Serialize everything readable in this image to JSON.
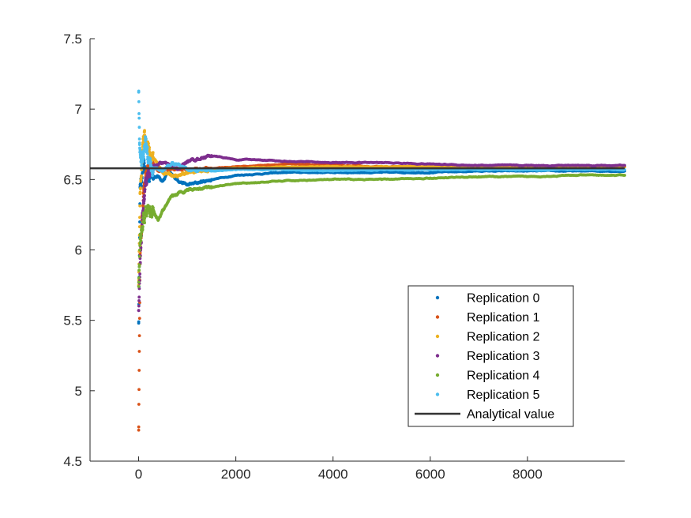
{
  "chart_data": {
    "type": "scatter",
    "title": "",
    "xlabel": "",
    "ylabel": "",
    "xlim": [
      -1000,
      10000
    ],
    "ylim": [
      4.5,
      7.5
    ],
    "xticks": [
      0,
      2000,
      4000,
      6000,
      8000
    ],
    "xtick_labels": [
      "0",
      "2000",
      "4000",
      "6000",
      "8000"
    ],
    "yticks": [
      4.5,
      5,
      5.5,
      6,
      6.5,
      7,
      7.5
    ],
    "ytick_labels": [
      "4.5",
      "5",
      "5.5",
      "6",
      "6.5",
      "7",
      "7.5"
    ],
    "grid": false,
    "legend_position": "lower-right",
    "series": [
      {
        "name": "Replication 0",
        "color": "#0072BD",
        "x": [
          1,
          30,
          100,
          200,
          400,
          500,
          600,
          800,
          1000,
          1500,
          2000,
          3000,
          4000,
          5000,
          6000,
          7000,
          8000,
          9000,
          10000
        ],
        "y": [
          5.48,
          6.45,
          6.58,
          6.55,
          6.52,
          6.49,
          6.55,
          6.5,
          6.46,
          6.5,
          6.53,
          6.55,
          6.55,
          6.55,
          6.55,
          6.56,
          6.56,
          6.56,
          6.56
        ]
      },
      {
        "name": "Replication 1",
        "color": "#D95319",
        "x": [
          1,
          30,
          100,
          150,
          250,
          400,
          600,
          800,
          1000,
          1500,
          2000,
          3000,
          4000,
          5000,
          6000,
          7000,
          8000,
          9000,
          10000
        ],
        "y": [
          4.72,
          5.97,
          6.4,
          6.55,
          6.62,
          6.56,
          6.57,
          6.58,
          6.57,
          6.58,
          6.59,
          6.61,
          6.6,
          6.59,
          6.59,
          6.59,
          6.59,
          6.59,
          6.59
        ]
      },
      {
        "name": "Replication 2",
        "color": "#EDB120",
        "x": [
          1,
          30,
          80,
          120,
          200,
          300,
          500,
          800,
          1000,
          1500,
          2000,
          3000,
          4000,
          5000,
          6000,
          7000,
          8000,
          9000,
          10000
        ],
        "y": [
          5.75,
          6.4,
          6.7,
          6.84,
          6.7,
          6.65,
          6.55,
          6.52,
          6.55,
          6.57,
          6.58,
          6.59,
          6.59,
          6.59,
          6.59,
          6.59,
          6.59,
          6.59,
          6.59
        ]
      },
      {
        "name": "Replication 3",
        "color": "#7E2F8E",
        "x": [
          1,
          30,
          100,
          200,
          300,
          500,
          800,
          1000,
          1500,
          2000,
          2500,
          3000,
          4000,
          5000,
          6000,
          7000,
          8000,
          9000,
          10000
        ],
        "y": [
          5.57,
          5.94,
          6.35,
          6.55,
          6.6,
          6.62,
          6.57,
          6.63,
          6.67,
          6.64,
          6.64,
          6.63,
          6.62,
          6.62,
          6.61,
          6.6,
          6.6,
          6.6,
          6.6
        ]
      },
      {
        "name": "Replication 4",
        "color": "#77AC30",
        "x": [
          1,
          30,
          100,
          200,
          300,
          400,
          500,
          700,
          1000,
          1500,
          2000,
          3000,
          4000,
          5000,
          6000,
          7000,
          8000,
          9000,
          10000
        ],
        "y": [
          5.74,
          6.05,
          6.2,
          6.3,
          6.25,
          6.21,
          6.28,
          6.38,
          6.43,
          6.45,
          6.47,
          6.49,
          6.5,
          6.5,
          6.51,
          6.52,
          6.52,
          6.53,
          6.53
        ]
      },
      {
        "name": "Replication 5",
        "color": "#4DBEEE",
        "x": [
          1,
          20,
          60,
          100,
          150,
          200,
          300,
          500,
          700,
          1000,
          1500,
          2000,
          3000,
          4000,
          5000,
          6000,
          7000,
          8000,
          9000,
          10000
        ],
        "y": [
          7.12,
          6.76,
          6.6,
          6.7,
          6.78,
          6.62,
          6.58,
          6.56,
          6.62,
          6.57,
          6.56,
          6.57,
          6.57,
          6.56,
          6.57,
          6.57,
          6.57,
          6.57,
          6.57,
          6.57
        ]
      }
    ],
    "reference_line": {
      "name": "Analytical value",
      "y": 6.58,
      "color": "#333333"
    }
  }
}
